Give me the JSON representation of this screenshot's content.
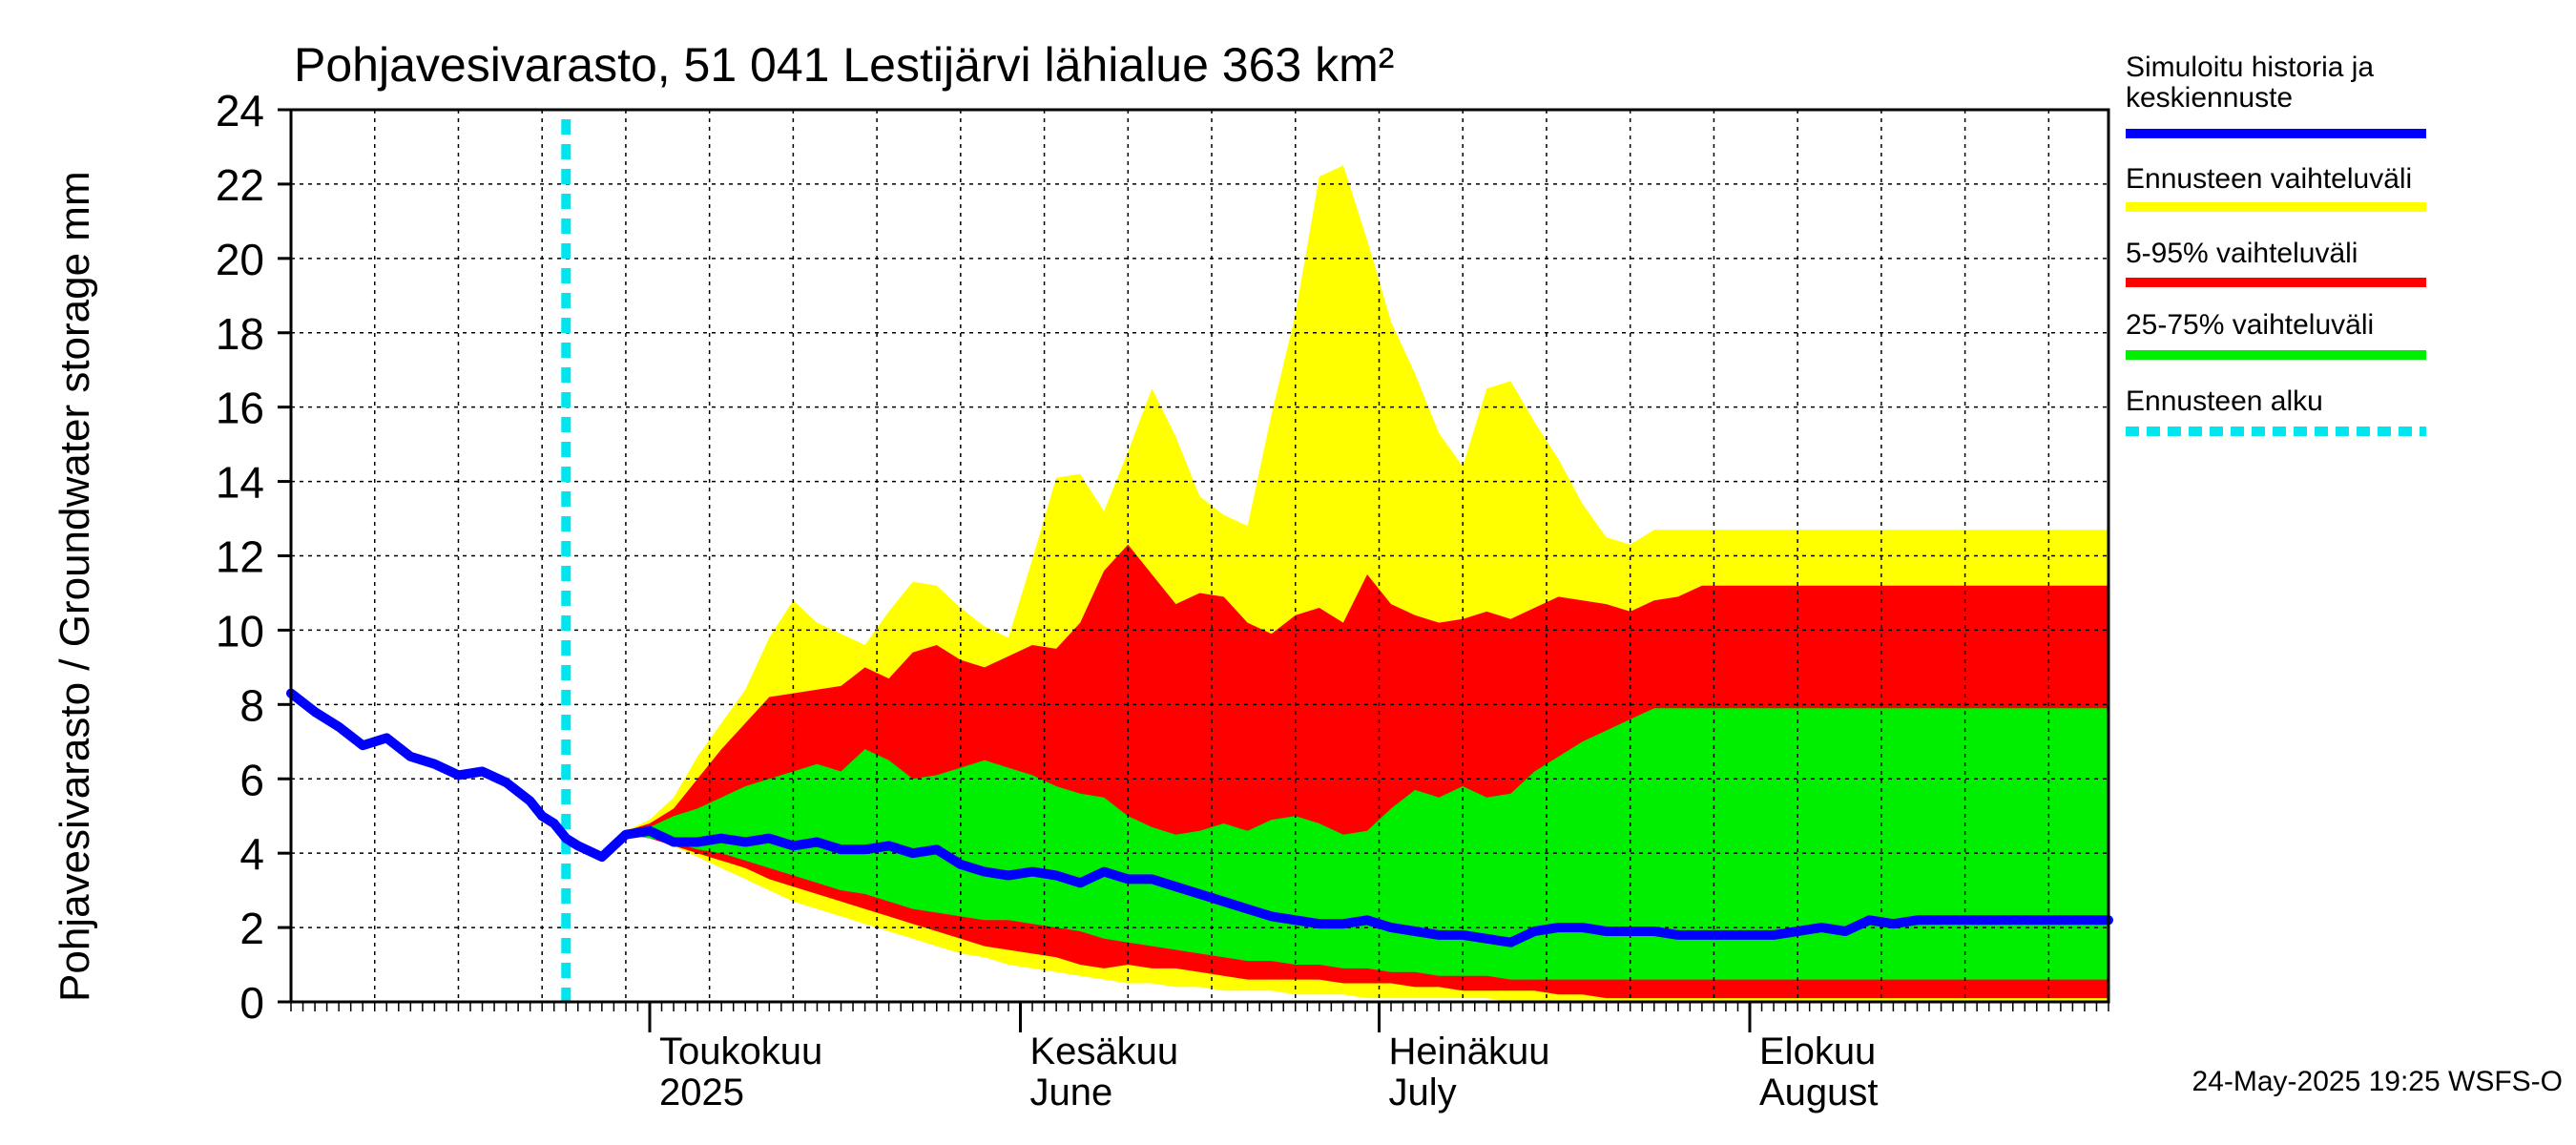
{
  "chart_data": {
    "type": "area",
    "title": "Pohjavesivarasto, 51 041 Lestijärvi lähialue 363 km²",
    "ylabel": "Pohjavesivarasto / Groundwater storage   mm",
    "ylim": [
      0,
      24
    ],
    "yticks": [
      0,
      2,
      4,
      6,
      8,
      10,
      12,
      14,
      16,
      18,
      20,
      22,
      24
    ],
    "xlim": [
      "2025-04-01",
      "2025-08-31"
    ],
    "grid": true,
    "forecast_start": "2025-04-24",
    "month_labels": [
      {
        "date": "2025-05-01",
        "fi": "Toukokuu",
        "en": "2025"
      },
      {
        "date": "2025-06-01",
        "fi": "Kesäkuu",
        "en": "June"
      },
      {
        "date": "2025-07-01",
        "fi": "Heinäkuu",
        "en": "July"
      },
      {
        "date": "2025-08-01",
        "fi": "Elokuu",
        "en": "August"
      }
    ],
    "legend_position": "right",
    "legend": [
      {
        "label": "Simuloitu historia ja keskiennuste",
        "color": "#0000ff",
        "style": "solid"
      },
      {
        "label": "Ennusteen vaihteluväli",
        "color": "#ffff00",
        "style": "solid"
      },
      {
        "label": "5-95% vaihteluväli",
        "color": "#ff0000",
        "style": "solid"
      },
      {
        "label": "25-75% vaihteluväli",
        "color": "#00ee00",
        "style": "solid"
      },
      {
        "label": "Ennusteen alku",
        "color": "#00e5ee",
        "style": "dashed"
      }
    ],
    "footer": "24-May-2025 19:25 WSFS-O",
    "x": [
      "2025-04-01",
      "2025-04-03",
      "2025-04-05",
      "2025-04-07",
      "2025-04-09",
      "2025-04-11",
      "2025-04-13",
      "2025-04-15",
      "2025-04-17",
      "2025-04-19",
      "2025-04-21",
      "2025-04-22",
      "2025-04-23",
      "2025-04-24",
      "2025-04-25",
      "2025-04-27",
      "2025-04-29",
      "2025-05-01",
      "2025-05-03",
      "2025-05-05",
      "2025-05-07",
      "2025-05-09",
      "2025-05-11",
      "2025-05-13",
      "2025-05-15",
      "2025-05-17",
      "2025-05-19",
      "2025-05-21",
      "2025-05-23",
      "2025-05-25",
      "2025-05-27",
      "2025-05-29",
      "2025-05-31",
      "2025-06-02",
      "2025-06-04",
      "2025-06-06",
      "2025-06-08",
      "2025-06-10",
      "2025-06-12",
      "2025-06-14",
      "2025-06-16",
      "2025-06-18",
      "2025-06-20",
      "2025-06-22",
      "2025-06-24",
      "2025-06-26",
      "2025-06-28",
      "2025-06-30",
      "2025-07-02",
      "2025-07-04",
      "2025-07-06",
      "2025-07-08",
      "2025-07-10",
      "2025-07-12",
      "2025-07-14",
      "2025-07-16",
      "2025-07-18",
      "2025-07-20",
      "2025-07-22",
      "2025-07-24",
      "2025-07-26",
      "2025-07-28",
      "2025-07-30",
      "2025-08-01",
      "2025-08-03",
      "2025-08-05",
      "2025-08-07",
      "2025-08-09",
      "2025-08-11",
      "2025-08-13",
      "2025-08-15",
      "2025-08-17",
      "2025-08-19",
      "2025-08-21",
      "2025-08-23",
      "2025-08-25",
      "2025-08-27",
      "2025-08-29",
      "2025-08-31"
    ],
    "series": [
      {
        "name": "Simuloitu historia ja keskiennuste",
        "color": "#0000ff",
        "values": [
          8.3,
          7.8,
          7.4,
          6.9,
          7.1,
          6.6,
          6.4,
          6.1,
          6.2,
          5.9,
          5.4,
          5.0,
          4.8,
          4.4,
          4.2,
          3.9,
          4.5,
          4.6,
          4.3,
          4.3,
          4.4,
          4.3,
          4.4,
          4.2,
          4.3,
          4.1,
          4.1,
          4.2,
          4.0,
          4.1,
          3.7,
          3.5,
          3.4,
          3.5,
          3.4,
          3.2,
          3.5,
          3.3,
          3.3,
          3.1,
          2.9,
          2.7,
          2.5,
          2.3,
          2.2,
          2.1,
          2.1,
          2.2,
          2.0,
          1.9,
          1.8,
          1.8,
          1.7,
          1.6,
          1.9,
          2.0,
          2.0,
          1.9,
          1.9,
          1.9,
          1.8,
          1.8,
          1.8,
          1.8,
          1.8,
          1.9,
          2.0,
          1.9,
          2.2,
          2.1,
          2.2,
          2.2,
          2.2,
          2.2,
          2.2,
          2.2,
          2.2,
          2.2,
          2.2
        ]
      },
      {
        "name": "Ennusteen vaihteluväli",
        "color": "#ffff00",
        "low": [
          null,
          null,
          null,
          null,
          null,
          null,
          null,
          null,
          null,
          null,
          null,
          null,
          null,
          null,
          null,
          null,
          4.5,
          4.4,
          4.2,
          3.9,
          3.6,
          3.3,
          3.0,
          2.7,
          2.5,
          2.3,
          2.1,
          1.9,
          1.7,
          1.5,
          1.3,
          1.2,
          1.0,
          0.9,
          0.8,
          0.7,
          0.6,
          0.5,
          0.5,
          0.4,
          0.4,
          0.3,
          0.3,
          0.3,
          0.2,
          0.2,
          0.2,
          0.1,
          0.1,
          0.1,
          0.1,
          0.1,
          0.1,
          0.0,
          0.0,
          0.0,
          0.0,
          0.0,
          0.0,
          0.0,
          0.0,
          0.0,
          0.0,
          0.0,
          0.0,
          0.0,
          0.0,
          0.0,
          0.0,
          0.0,
          0.0,
          0.0,
          0.0,
          0.0,
          0.0,
          0.0,
          0.0,
          0.0,
          0.0
        ],
        "high": [
          null,
          null,
          null,
          null,
          null,
          null,
          null,
          null,
          null,
          null,
          null,
          null,
          null,
          null,
          null,
          null,
          4.6,
          4.9,
          5.5,
          6.6,
          7.5,
          8.4,
          9.8,
          10.8,
          10.2,
          9.9,
          9.6,
          10.5,
          11.3,
          11.2,
          10.6,
          10.1,
          9.8,
          11.9,
          14.1,
          14.2,
          13.2,
          14.8,
          16.5,
          15.2,
          13.6,
          13.1,
          12.8,
          15.8,
          18.5,
          22.2,
          22.5,
          20.5,
          18.3,
          16.9,
          15.3,
          14.4,
          16.5,
          16.7,
          15.6,
          14.6,
          13.4,
          12.5,
          12.3,
          12.7,
          12.7,
          12.7,
          12.7,
          12.7,
          12.7,
          12.7,
          12.7,
          12.7,
          12.7,
          12.7,
          12.7,
          12.7,
          12.7,
          12.7,
          12.7,
          12.7,
          12.7,
          12.7,
          12.7
        ]
      },
      {
        "name": "5-95% vaihteluväli",
        "color": "#ff0000",
        "low": [
          null,
          null,
          null,
          null,
          null,
          null,
          null,
          null,
          null,
          null,
          null,
          null,
          null,
          null,
          null,
          null,
          4.5,
          4.4,
          4.2,
          4.0,
          3.8,
          3.6,
          3.3,
          3.1,
          2.9,
          2.7,
          2.5,
          2.3,
          2.1,
          1.9,
          1.7,
          1.5,
          1.4,
          1.3,
          1.2,
          1.0,
          0.9,
          1.0,
          0.9,
          0.9,
          0.8,
          0.7,
          0.6,
          0.6,
          0.6,
          0.6,
          0.5,
          0.5,
          0.5,
          0.4,
          0.4,
          0.3,
          0.3,
          0.3,
          0.3,
          0.2,
          0.2,
          0.1,
          0.1,
          0.1,
          0.1,
          0.1,
          0.1,
          0.1,
          0.1,
          0.1,
          0.1,
          0.1,
          0.1,
          0.1,
          0.1,
          0.1,
          0.1,
          0.1,
          0.1,
          0.1,
          0.1,
          0.1,
          0.1
        ],
        "high": [
          null,
          null,
          null,
          null,
          null,
          null,
          null,
          null,
          null,
          null,
          null,
          null,
          null,
          null,
          null,
          null,
          4.6,
          4.8,
          5.2,
          6.0,
          6.8,
          7.5,
          8.2,
          8.3,
          8.4,
          8.5,
          9.0,
          8.7,
          9.4,
          9.6,
          9.2,
          9.0,
          9.3,
          9.6,
          9.5,
          10.2,
          11.6,
          12.3,
          11.5,
          10.7,
          11.0,
          10.9,
          10.2,
          9.9,
          10.4,
          10.6,
          10.2,
          11.5,
          10.7,
          10.4,
          10.2,
          10.3,
          10.5,
          10.3,
          10.6,
          10.9,
          10.8,
          10.7,
          10.5,
          10.8,
          10.9,
          11.2,
          11.2,
          11.2,
          11.2,
          11.2,
          11.2,
          11.2,
          11.2,
          11.2,
          11.2,
          11.2,
          11.2,
          11.2,
          11.2,
          11.2,
          11.2,
          11.2,
          11.2
        ]
      },
      {
        "name": "25-75% vaihteluväli",
        "color": "#00ee00",
        "low": [
          null,
          null,
          null,
          null,
          null,
          null,
          null,
          null,
          null,
          null,
          null,
          null,
          null,
          null,
          null,
          null,
          4.5,
          4.4,
          4.3,
          4.1,
          4.0,
          3.8,
          3.6,
          3.4,
          3.2,
          3.0,
          2.9,
          2.7,
          2.5,
          2.4,
          2.3,
          2.2,
          2.2,
          2.1,
          2.0,
          1.9,
          1.7,
          1.6,
          1.5,
          1.4,
          1.3,
          1.2,
          1.1,
          1.1,
          1.0,
          1.0,
          0.9,
          0.9,
          0.8,
          0.8,
          0.7,
          0.7,
          0.7,
          0.6,
          0.6,
          0.6,
          0.6,
          0.6,
          0.6,
          0.6,
          0.6,
          0.6,
          0.6,
          0.6,
          0.6,
          0.6,
          0.6,
          0.6,
          0.6,
          0.6,
          0.6,
          0.6,
          0.6,
          0.6,
          0.6,
          0.6,
          0.6,
          0.6,
          0.6
        ],
        "high": [
          null,
          null,
          null,
          null,
          null,
          null,
          null,
          null,
          null,
          null,
          null,
          null,
          null,
          null,
          null,
          null,
          4.6,
          4.7,
          5.0,
          5.2,
          5.5,
          5.8,
          6.0,
          6.2,
          6.4,
          6.2,
          6.8,
          6.5,
          6.0,
          6.1,
          6.3,
          6.5,
          6.3,
          6.1,
          5.8,
          5.6,
          5.5,
          5.0,
          4.7,
          4.5,
          4.6,
          4.8,
          4.6,
          4.9,
          5.0,
          4.8,
          4.5,
          4.6,
          5.2,
          5.7,
          5.5,
          5.8,
          5.5,
          5.6,
          6.2,
          6.6,
          7.0,
          7.3,
          7.6,
          7.9,
          7.9,
          7.9,
          7.9,
          7.9,
          7.9,
          7.9,
          7.9,
          7.9,
          7.9,
          7.9,
          7.9,
          7.9,
          7.9,
          7.9,
          7.9,
          7.9,
          7.9,
          7.9,
          7.9
        ]
      }
    ]
  }
}
